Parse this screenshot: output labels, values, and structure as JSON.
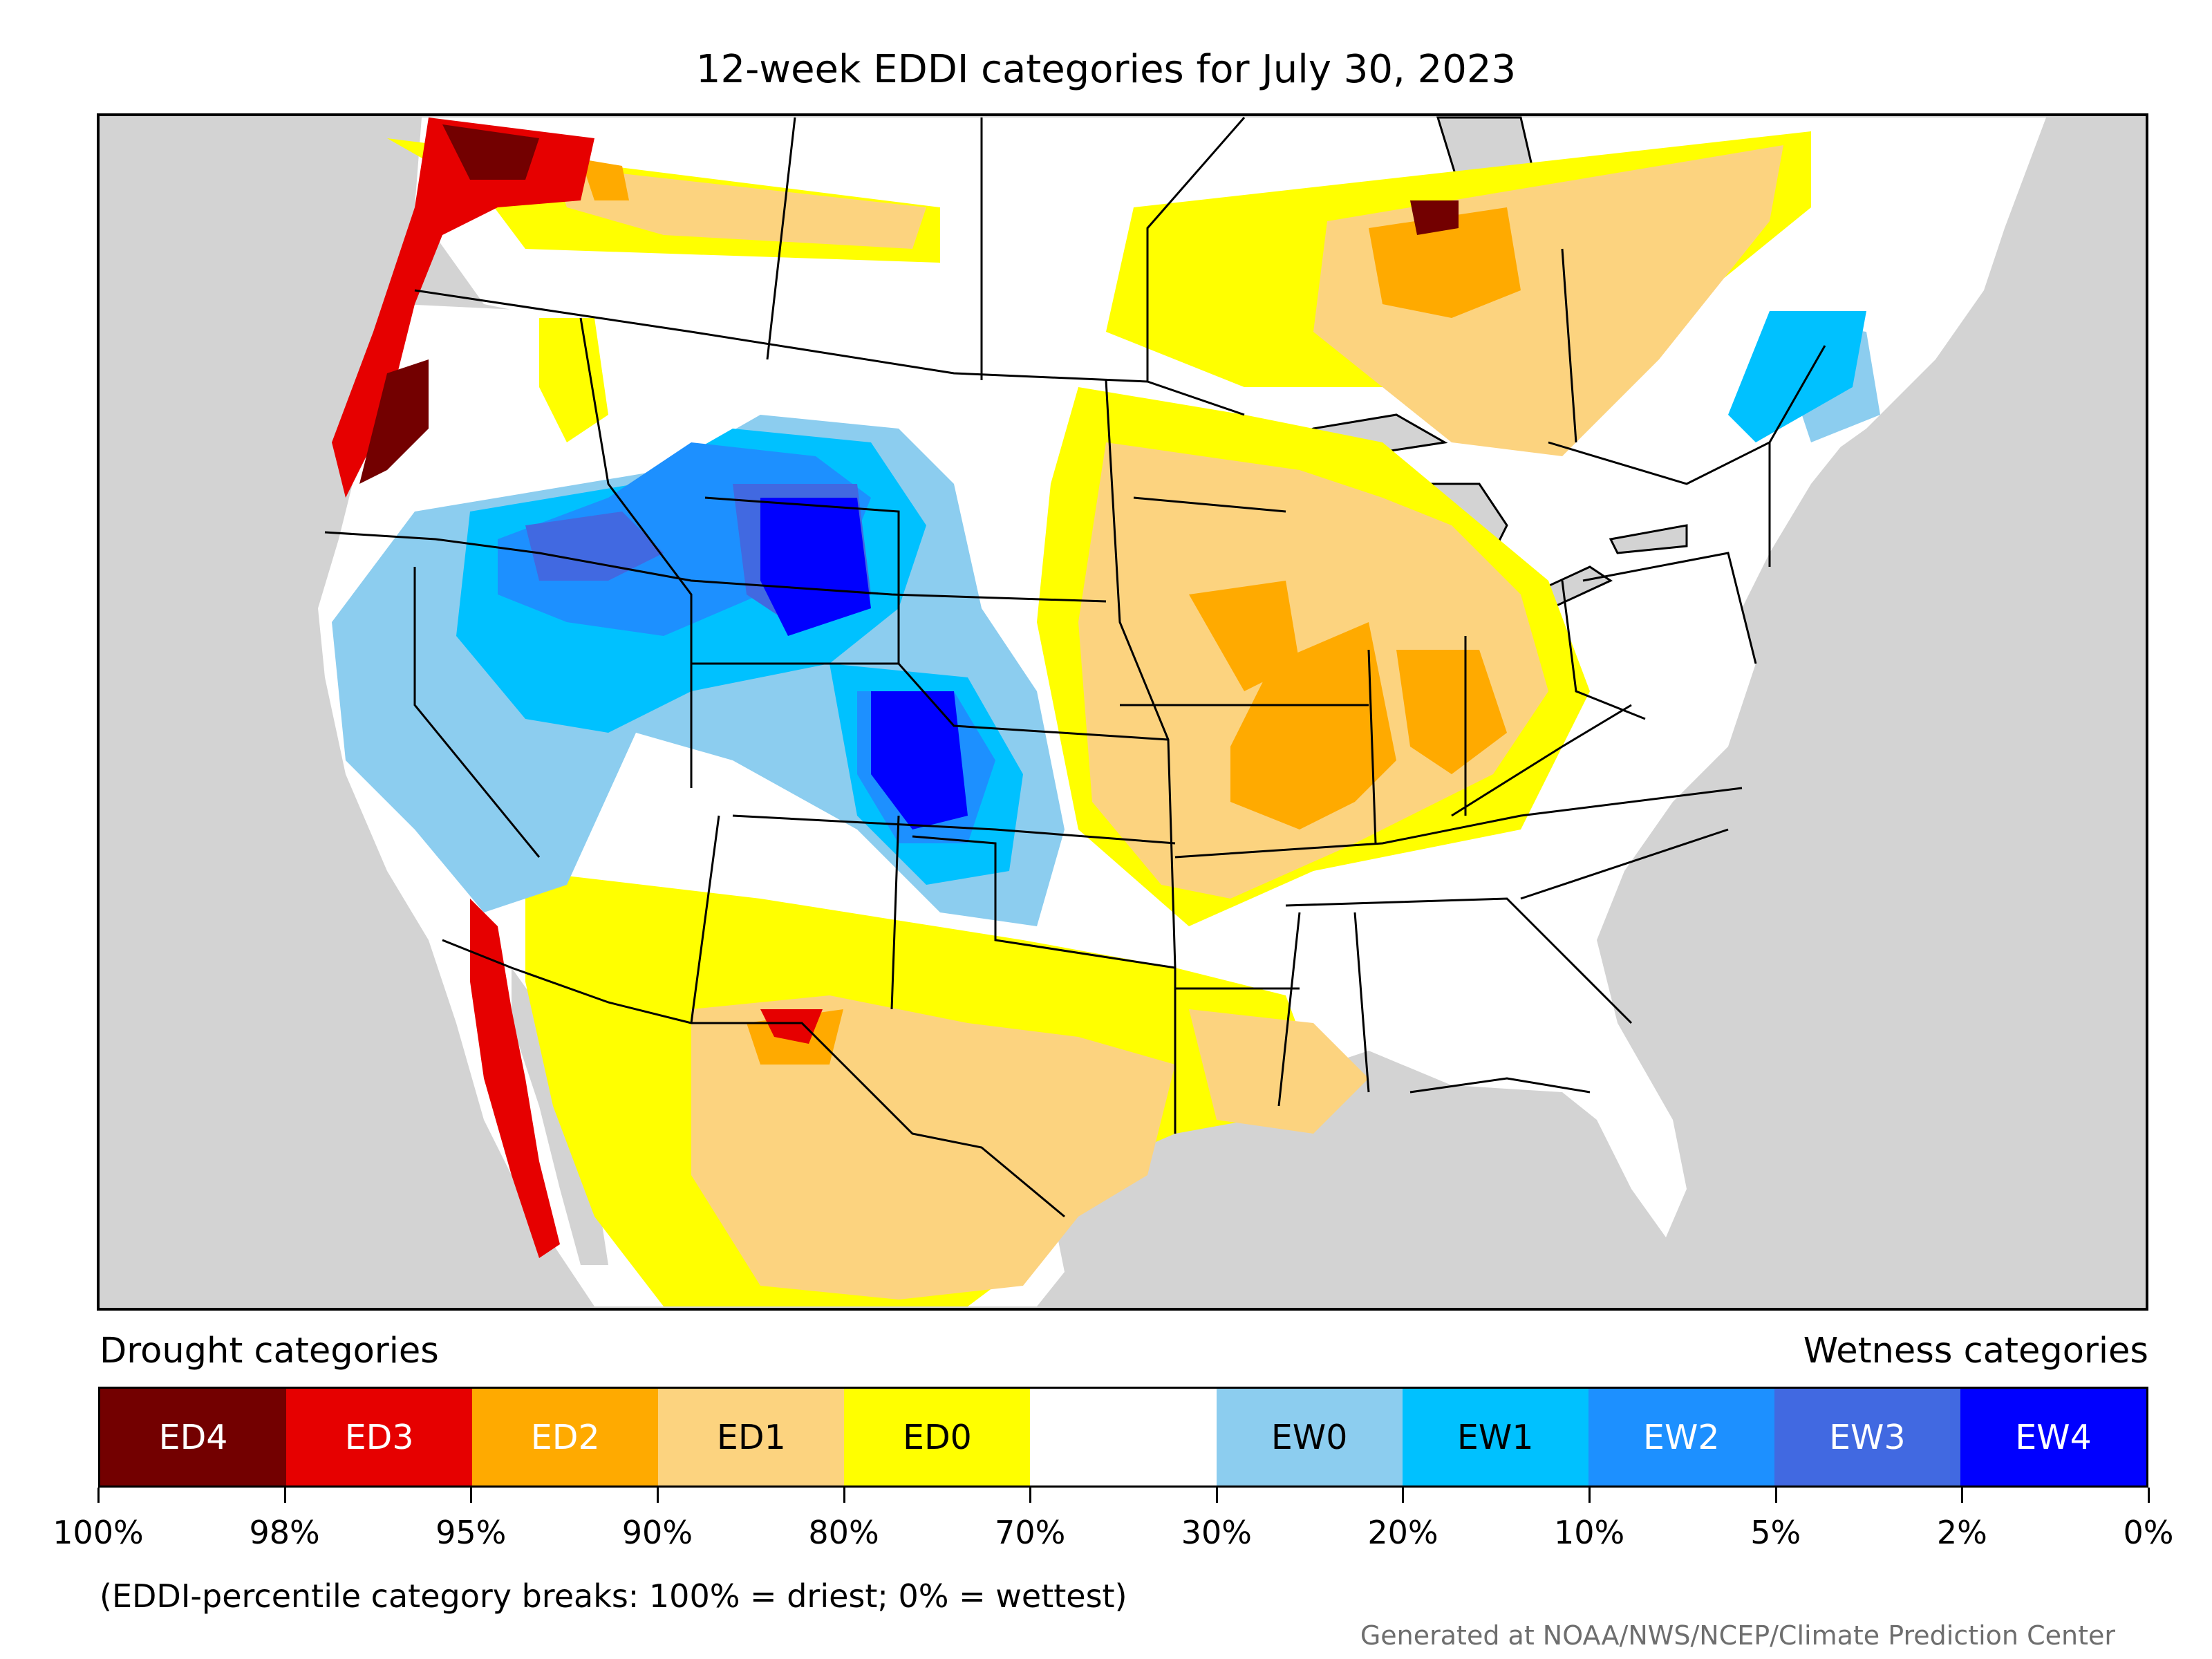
{
  "title": "12-week EDDI categories for July 30, 2023",
  "legend": {
    "drought_heading": "Drought categories",
    "wetness_heading": "Wetness categories",
    "categories": [
      {
        "label": "ED4",
        "color": "#730000",
        "text_color": "#ffffff"
      },
      {
        "label": "ED3",
        "color": "#e60000",
        "text_color": "#ffffff"
      },
      {
        "label": "ED2",
        "color": "#ffaa00",
        "text_color": "#ffffff"
      },
      {
        "label": "ED1",
        "color": "#fcd37f",
        "text_color": "#000000"
      },
      {
        "label": "ED0",
        "color": "#ffff00",
        "text_color": "#000000"
      },
      {
        "label": "",
        "color": "#ffffff",
        "text_color": "#000000"
      },
      {
        "label": "EW0",
        "color": "#8ccdef",
        "text_color": "#000000"
      },
      {
        "label": "EW1",
        "color": "#00c1ff",
        "text_color": "#000000"
      },
      {
        "label": "EW2",
        "color": "#1d90ff",
        "text_color": "#ffffff"
      },
      {
        "label": "EW3",
        "color": "#4169e1",
        "text_color": "#ffffff"
      },
      {
        "label": "EW4",
        "color": "#0000ff",
        "text_color": "#ffffff"
      }
    ],
    "tick_labels": [
      "100%",
      "98%",
      "95%",
      "90%",
      "80%",
      "70%",
      "30%",
      "20%",
      "10%",
      "5%",
      "2%",
      "0%"
    ]
  },
  "footnote": "(EDDI-percentile category breaks: 100% = driest; 0% = wettest)",
  "credit": "Generated at NOAA/NWS/NCEP/Climate Prediction Center",
  "map": {
    "background_color": "#d3d3d3",
    "land_color": "#ffffff",
    "boundary_color": "#000000"
  }
}
